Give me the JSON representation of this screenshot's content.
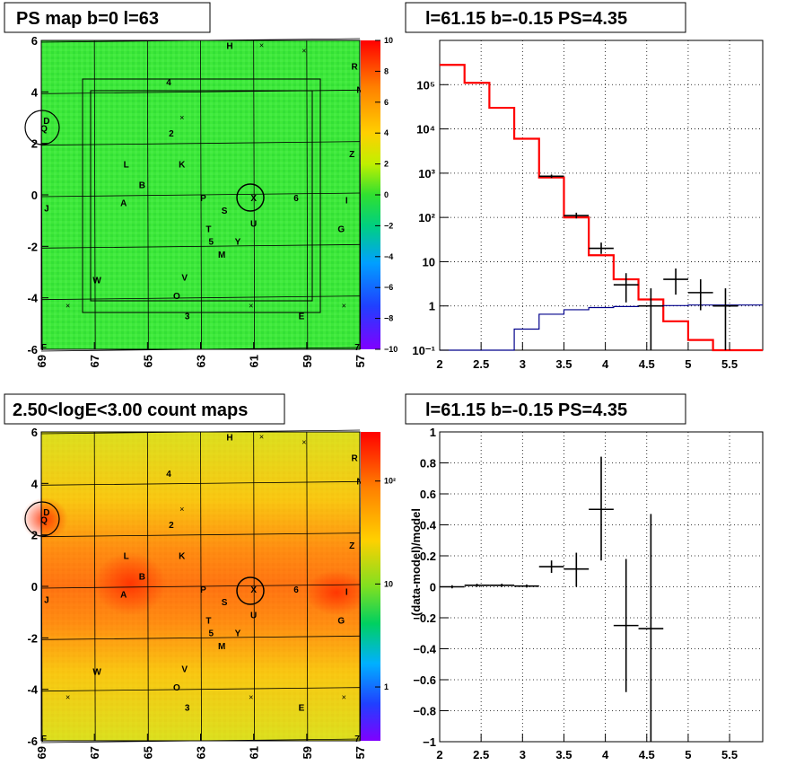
{
  "chart_data": [
    {
      "type": "heatmap",
      "title": "PS map b=0 l=63",
      "x_ticks": [
        "69",
        "67",
        "65",
        "63",
        "61",
        "59",
        "57"
      ],
      "y_ticks": [
        "6",
        "4",
        "2",
        "0",
        "-2",
        "-4",
        "-6"
      ],
      "xlim": [
        69,
        57
      ],
      "ylim": [
        -6,
        6
      ],
      "colorbar_ticks": [
        "10",
        "8",
        "6",
        "4",
        "2",
        "0",
        "−2",
        "−4",
        "−6",
        "−8",
        "−10"
      ],
      "colorbar_range": [
        -10,
        10
      ],
      "source_labels": [
        {
          "t": "H",
          "x": 61.9,
          "y": 5.8
        },
        {
          "t": "4",
          "x": 64.2,
          "y": 4.4
        },
        {
          "t": "R",
          "x": 57.2,
          "y": 5.0
        },
        {
          "t": "N",
          "x": 57.0,
          "y": 4.1
        },
        {
          "t": "D",
          "x": 68.8,
          "y": 2.9
        },
        {
          "t": "Q",
          "x": 68.9,
          "y": 2.6
        },
        {
          "t": "2",
          "x": 64.1,
          "y": 2.4
        },
        {
          "t": "Z",
          "x": 57.3,
          "y": 1.6
        },
        {
          "t": "L",
          "x": 65.8,
          "y": 1.2
        },
        {
          "t": "K",
          "x": 63.7,
          "y": 1.2
        },
        {
          "t": "B",
          "x": 65.2,
          "y": 0.4
        },
        {
          "t": "P",
          "x": 62.9,
          "y": -0.1
        },
        {
          "t": "X",
          "x": 61.0,
          "y": -0.1
        },
        {
          "t": "6",
          "x": 59.4,
          "y": -0.1
        },
        {
          "t": "A",
          "x": 65.9,
          "y": -0.3
        },
        {
          "t": "S",
          "x": 62.1,
          "y": -0.6
        },
        {
          "t": "I",
          "x": 57.5,
          "y": -0.2
        },
        {
          "t": "J",
          "x": 68.8,
          "y": -0.5
        },
        {
          "t": "U",
          "x": 61.0,
          "y": -1.1
        },
        {
          "t": "T",
          "x": 62.7,
          "y": -1.3
        },
        {
          "t": "G",
          "x": 57.7,
          "y": -1.3
        },
        {
          "t": "5",
          "x": 62.6,
          "y": -1.8
        },
        {
          "t": "Y",
          "x": 61.6,
          "y": -1.8
        },
        {
          "t": "M",
          "x": 62.2,
          "y": -2.3
        },
        {
          "t": "W",
          "x": 66.9,
          "y": -3.3
        },
        {
          "t": "V",
          "x": 63.6,
          "y": -3.2
        },
        {
          "t": "O",
          "x": 63.9,
          "y": -3.9
        },
        {
          "t": "3",
          "x": 63.5,
          "y": -4.7
        },
        {
          "t": "E",
          "x": 59.2,
          "y": -4.7
        },
        {
          "t": "F",
          "x": 68.9,
          "y": -5.9
        },
        {
          "t": "7",
          "x": 57.1,
          "y": -5.9
        }
      ]
    },
    {
      "type": "line",
      "title": "l=61.15 b=-0.15 PS=4.35",
      "x_ticks": [
        "2",
        "2.5",
        "3",
        "3.5",
        "4",
        "4.5",
        "5",
        "5.5"
      ],
      "xlim": [
        2.0,
        5.9
      ],
      "y_scale": "log",
      "y_ticks": [
        "10⁵",
        "10⁴",
        "10³",
        "10²",
        "10",
        "1",
        "10⁻¹"
      ],
      "ylim": [
        0.1,
        1000000
      ],
      "grid": true,
      "model_bins": [
        2.0,
        2.3,
        2.6,
        2.9,
        3.2,
        3.5,
        3.8,
        4.1,
        4.4,
        4.7,
        5.0,
        5.3,
        5.9
      ],
      "series": [
        {
          "color": "#ff0000",
          "values": [
            280000,
            110000,
            30000,
            6000,
            800,
            100,
            14,
            4,
            1.4,
            0.45,
            0.17,
            0.1
          ]
        },
        {
          "color": "#00008b",
          "values": [
            0.05,
            0.05,
            0.05,
            0.3,
            0.65,
            0.82,
            0.92,
            0.97,
            1.0,
            1.02,
            1.05,
            1.05
          ]
        },
        {
          "color": "#000000",
          "points": [
            {
              "x": 3.35,
              "xerr": 0.15,
              "y": 850,
              "ylo": 780,
              "yhi": 930
            },
            {
              "x": 3.65,
              "xerr": 0.15,
              "y": 110,
              "ylo": 95,
              "yhi": 128
            },
            {
              "x": 3.95,
              "xerr": 0.15,
              "y": 20,
              "ylo": 15,
              "yhi": 27
            },
            {
              "x": 4.25,
              "xerr": 0.15,
              "y": 3,
              "ylo": 1.2,
              "yhi": 5.5
            },
            {
              "x": 4.55,
              "xerr": 0.15,
              "y": 1,
              "ylo": 0.1,
              "yhi": 2.5
            },
            {
              "x": 4.85,
              "xerr": 0.15,
              "y": 4,
              "ylo": 1.8,
              "yhi": 7
            },
            {
              "x": 5.15,
              "xerr": 0.15,
              "y": 2,
              "ylo": 0.8,
              "yhi": 4
            },
            {
              "x": 5.45,
              "xerr": 0.15,
              "y": 1,
              "ylo": 0.1,
              "yhi": 2.5
            }
          ]
        }
      ]
    },
    {
      "type": "heatmap",
      "title": "2.50<logE<3.00 count maps",
      "x_ticks": [
        "69",
        "67",
        "65",
        "63",
        "61",
        "59",
        "57"
      ],
      "y_ticks": [
        "6",
        "4",
        "2",
        "0",
        "-2",
        "-4",
        "-6"
      ],
      "xlim": [
        69,
        57
      ],
      "ylim": [
        -6,
        6
      ],
      "colorbar_ticks": [
        "10²",
        "10",
        "1"
      ],
      "colorbar_range": [
        0.3,
        300
      ],
      "colorbar_scale": "log"
    },
    {
      "type": "scatter",
      "title": "l=61.15 b=-0.15 PS=4.35",
      "ylabel": "(data-model)/model",
      "x_ticks": [
        "2",
        "2.5",
        "3",
        "3.5",
        "4",
        "4.5",
        "5",
        "5.5"
      ],
      "xlim": [
        2.0,
        5.9
      ],
      "y_ticks": [
        "1",
        "0.8",
        "0.6",
        "0.4",
        "0.2",
        "0",
        "−0.2",
        "−0.4",
        "−0.6",
        "−0.8",
        "−1"
      ],
      "ylim": [
        -1,
        1
      ],
      "grid": true,
      "points": [
        {
          "x": 2.15,
          "xerr": 0.15,
          "y": 0.0,
          "ylo": -0.01,
          "yhi": 0.01
        },
        {
          "x": 2.45,
          "xerr": 0.15,
          "y": 0.01,
          "ylo": 0.0,
          "yhi": 0.02
        },
        {
          "x": 2.75,
          "xerr": 0.15,
          "y": 0.01,
          "ylo": 0.0,
          "yhi": 0.02
        },
        {
          "x": 3.05,
          "xerr": 0.15,
          "y": 0.005,
          "ylo": -0.005,
          "yhi": 0.015
        },
        {
          "x": 3.35,
          "xerr": 0.15,
          "y": 0.13,
          "ylo": 0.09,
          "yhi": 0.17
        },
        {
          "x": 3.65,
          "xerr": 0.15,
          "y": 0.115,
          "ylo": 0.0,
          "yhi": 0.22
        },
        {
          "x": 3.95,
          "xerr": 0.15,
          "y": 0.5,
          "ylo": 0.17,
          "yhi": 0.84
        },
        {
          "x": 4.25,
          "xerr": 0.15,
          "y": -0.25,
          "ylo": -0.68,
          "yhi": 0.18
        },
        {
          "x": 4.55,
          "xerr": 0.15,
          "y": -0.27,
          "ylo": -1.0,
          "yhi": 0.47
        }
      ]
    }
  ]
}
